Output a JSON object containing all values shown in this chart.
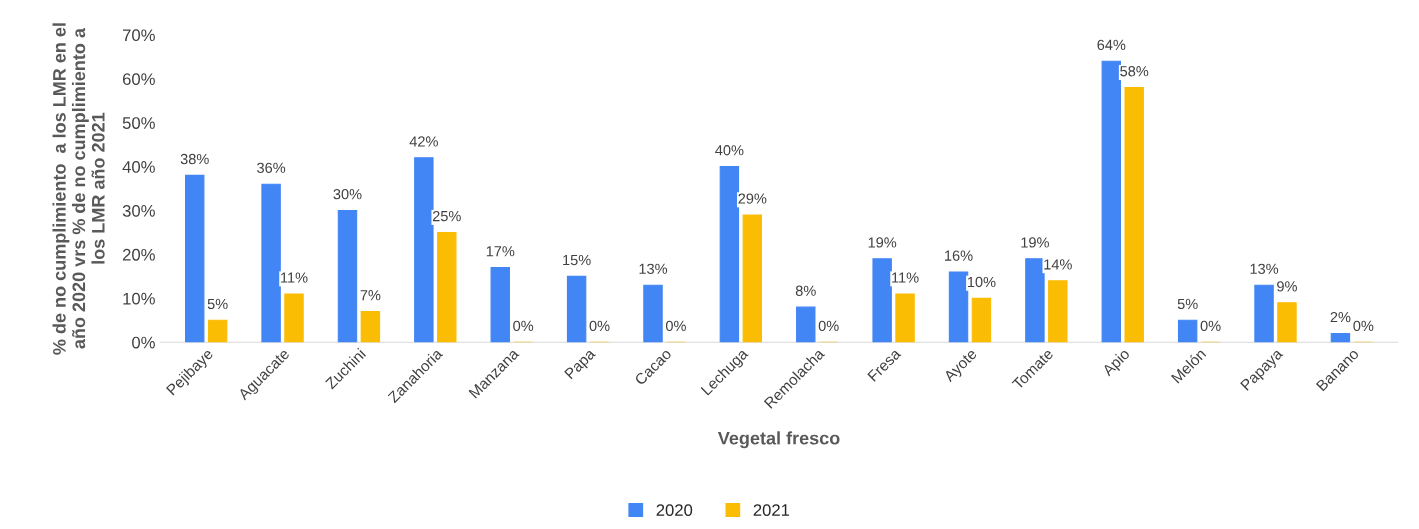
{
  "chart_data": {
    "type": "bar",
    "xlabel": "Vegetal fresco",
    "ylabel": "% de no cumplimiento  a los LMR en el\naño 2020 vrs % de no cumplimiento a\nlos LMR año 2021",
    "categories": [
      "Pejibaye",
      "Aguacate",
      "Zuchini",
      "Zanahoria",
      "Manzana",
      "Papa",
      "Cacao",
      "Lechuga",
      "Remolacha",
      "Fresa",
      "Ayote",
      "Tomate",
      "Apio",
      "Melón",
      "Papaya",
      "Banano"
    ],
    "series": [
      {
        "name": "2020",
        "color": "#4285f4",
        "values": [
          38,
          36,
          30,
          42,
          17,
          15,
          13,
          40,
          8,
          19,
          16,
          19,
          64,
          5,
          13,
          2
        ],
        "value_labels": [
          "38%",
          "36%",
          "30%",
          "42%",
          "17%",
          "15%",
          "13%",
          "40%",
          "8%",
          "19%",
          "16%",
          "19%",
          "64%",
          "5%",
          "13%",
          "2%"
        ]
      },
      {
        "name": "2021",
        "color": "#fbbc04",
        "values": [
          5,
          11,
          7,
          25,
          0,
          0,
          0,
          29,
          0,
          11,
          10,
          14,
          58,
          0,
          9,
          0
        ],
        "value_labels": [
          "5%",
          "11%",
          "7%",
          "25%",
          "0%",
          "0%",
          "0%",
          "29%",
          "0%",
          "11%",
          "10%",
          "14%",
          "58%",
          "0%",
          "9%",
          "0%"
        ]
      }
    ],
    "ylim": [
      0,
      70
    ],
    "yticks": [
      {
        "value": 0,
        "label": "0%"
      },
      {
        "value": 10,
        "label": "10%"
      },
      {
        "value": 20,
        "label": "20%"
      },
      {
        "value": 30,
        "label": "30%"
      },
      {
        "value": 40,
        "label": "40%"
      },
      {
        "value": 50,
        "label": "50%"
      },
      {
        "value": 60,
        "label": "60%"
      },
      {
        "value": 70,
        "label": "70%"
      }
    ],
    "grid": false,
    "legend": "bottom"
  }
}
